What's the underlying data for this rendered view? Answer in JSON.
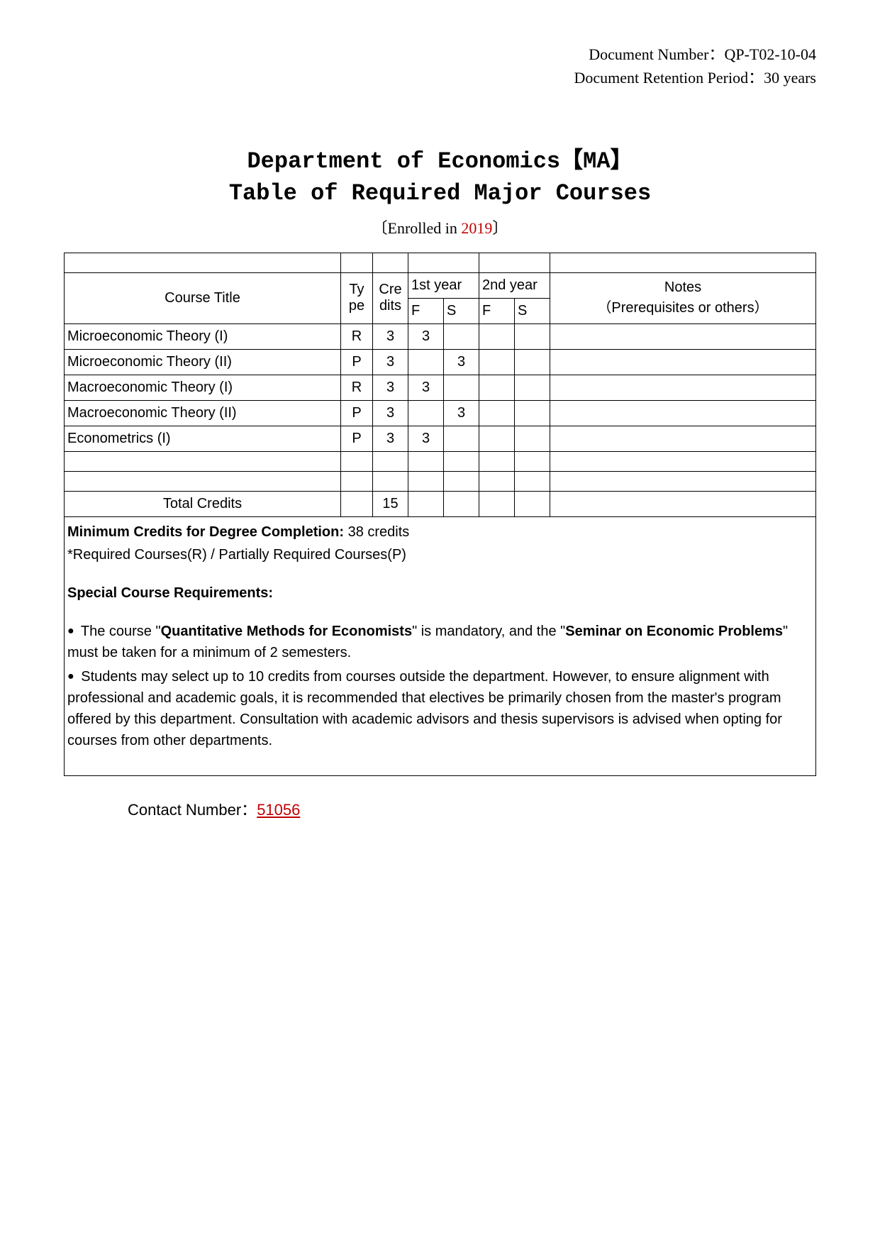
{
  "header": {
    "doc_number_label": "Document Number：",
    "doc_number_value": "QP-T02-10-04",
    "retention_label": "Document Retention Period：",
    "retention_value": "30 years"
  },
  "title": {
    "line1": "Department of Economics【MA】",
    "line2": "Table of Required Major Courses",
    "enrolled_prefix": "〔Enrolled in ",
    "enrolled_year": "2019",
    "enrolled_suffix": "〕"
  },
  "table": {
    "headers": {
      "course_title": "Course Title",
      "type": "Type",
      "credits": "Credits",
      "year1": "1st year",
      "year2": "2nd year",
      "fall": "F",
      "spring": "S",
      "notes": "Notes",
      "notes_sub": "（Prerequisites or others）"
    },
    "rows": [
      {
        "title": "Microeconomic Theory (I)",
        "type": "R",
        "credits": "3",
        "y1f": "3",
        "y1s": "",
        "y2f": "",
        "y2s": "",
        "notes": ""
      },
      {
        "title": "Microeconomic Theory (II)",
        "type": "P",
        "credits": "3",
        "y1f": "",
        "y1s": "3",
        "y2f": "",
        "y2s": "",
        "notes": ""
      },
      {
        "title": "Macroeconomic Theory (I)",
        "type": "R",
        "credits": "3",
        "y1f": "3",
        "y1s": "",
        "y2f": "",
        "y2s": "",
        "notes": ""
      },
      {
        "title": "Macroeconomic Theory (II)",
        "type": "P",
        "credits": "3",
        "y1f": "",
        "y1s": "3",
        "y2f": "",
        "y2s": "",
        "notes": ""
      },
      {
        "title": "Econometrics (I)",
        "type": "P",
        "credits": "3",
        "y1f": "3",
        "y1s": "",
        "y2f": "",
        "y2s": "",
        "notes": ""
      },
      {
        "title": "",
        "type": "",
        "credits": "",
        "y1f": "",
        "y1s": "",
        "y2f": "",
        "y2s": "",
        "notes": ""
      },
      {
        "title": "",
        "type": "",
        "credits": "",
        "y1f": "",
        "y1s": "",
        "y2f": "",
        "y2s": "",
        "notes": ""
      }
    ],
    "total_label": "Total Credits",
    "total_credits": "15"
  },
  "below": {
    "min_credits_label": "Minimum Credits for Degree Completion:",
    "min_credits_value": " 38 credits",
    "legend": "*Required Courses(R) / Partially Required Courses(P)",
    "special_title": "Special Course Requirements:",
    "bullet1_prefix": "The course \"",
    "bullet1_bold1": "Quantitative Methods for Economists",
    "bullet1_mid": "\" is mandatory, and the \"",
    "bullet1_bold2": "Seminar on Economic Problems",
    "bullet1_suffix": "\" must be taken for a minimum of 2 semesters.",
    "bullet2": "Students may select up to 10 credits from courses outside the department. However, to ensure alignment with professional and academic goals, it is recommended that electives be primarily chosen from the master's program offered by this department. Consultation with academic advisors and thesis supervisors is advised when opting for courses from other departments."
  },
  "contact": {
    "label": "Contact Number：",
    "number": "51056"
  },
  "styling": {
    "page_bg": "#ffffff",
    "text_color": "#000000",
    "accent_red": "#c00000",
    "border_color": "#000000",
    "title_font": "Courier New",
    "body_font": "Arial",
    "header_font": "Times New Roman",
    "title_fontsize": 32,
    "body_fontsize": 20,
    "header_fontsize": 22
  }
}
